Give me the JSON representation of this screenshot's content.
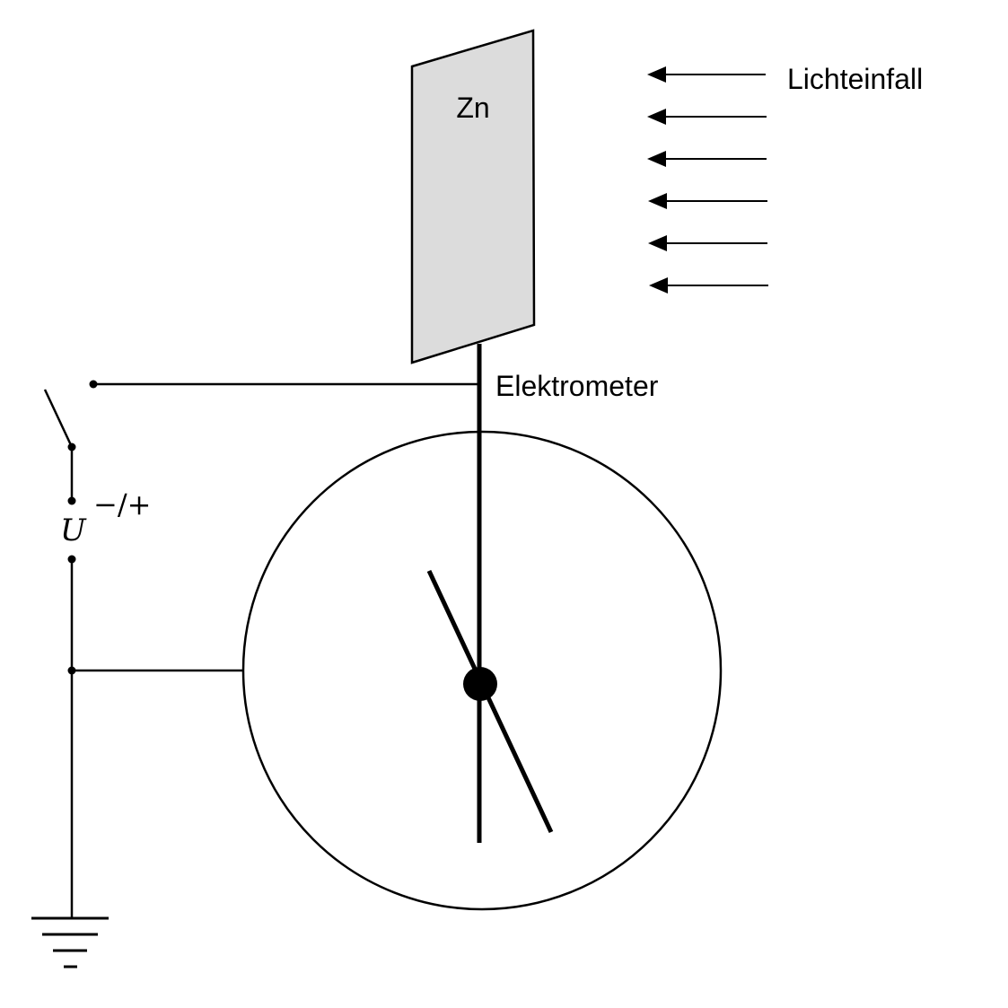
{
  "labels": {
    "plate": "Zn",
    "light": "Lichteinfall",
    "device": "Elektrometer",
    "voltage": "U",
    "polarity": "−/+"
  },
  "colors": {
    "plate_fill": "#dcdcdc",
    "stroke": "#000000",
    "background": "#ffffff"
  }
}
